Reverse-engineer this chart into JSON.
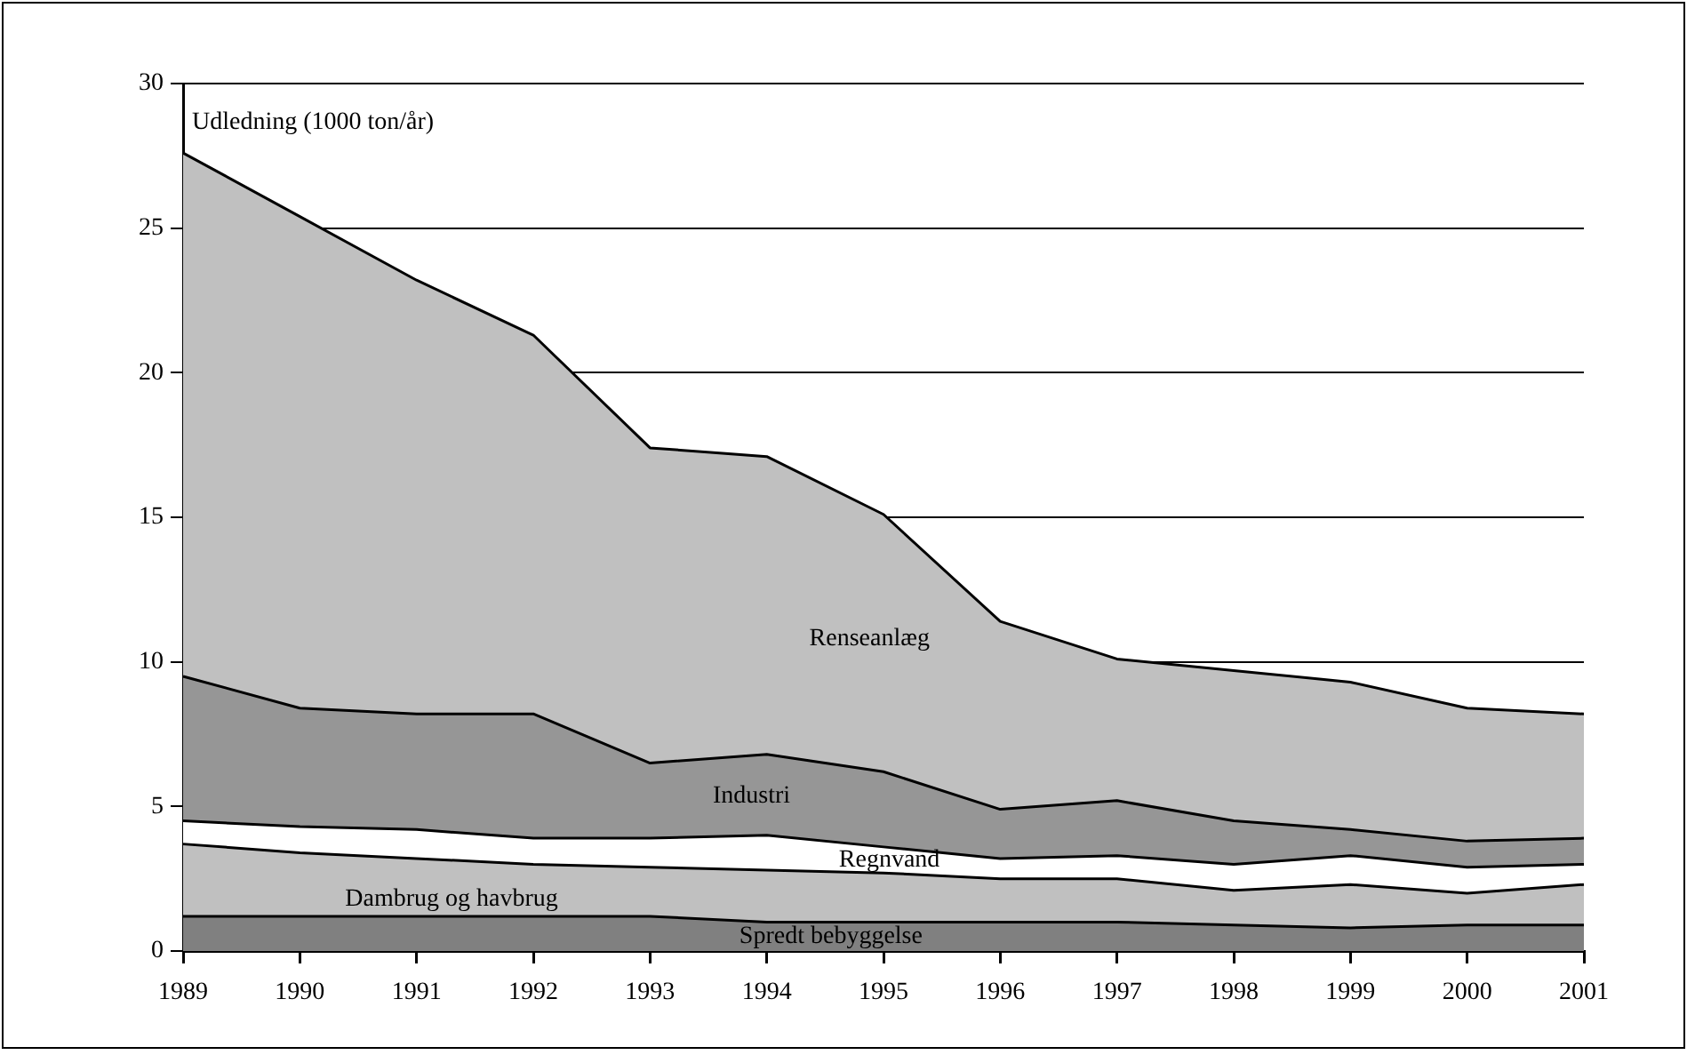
{
  "chart_data": {
    "type": "area",
    "ylabel": "Udledning (1000 ton/år)",
    "categories": [
      "1989",
      "1990",
      "1991",
      "1992",
      "1993",
      "1994",
      "1995",
      "1996",
      "1997",
      "1998",
      "1999",
      "2000",
      "2001"
    ],
    "series": [
      {
        "name": "Spredt bebyggelse",
        "color": "#808080",
        "values": [
          1.2,
          1.2,
          1.2,
          1.2,
          1.2,
          1.0,
          1.0,
          1.0,
          1.0,
          0.9,
          0.8,
          0.9,
          0.9
        ]
      },
      {
        "name": "Dambrug og havbrug",
        "color": "#c0c0c0",
        "values": [
          2.5,
          2.2,
          2.0,
          1.8,
          1.7,
          1.8,
          1.7,
          1.5,
          1.5,
          1.2,
          1.5,
          1.1,
          1.4
        ]
      },
      {
        "name": "Regnvand",
        "color": "#ffffff",
        "values": [
          0.8,
          0.9,
          1.0,
          0.9,
          1.0,
          1.2,
          0.9,
          0.7,
          0.8,
          0.9,
          1.0,
          0.9,
          0.7
        ]
      },
      {
        "name": "Industri",
        "color": "#969696",
        "values": [
          5.0,
          4.1,
          4.0,
          4.3,
          2.6,
          2.8,
          2.6,
          1.7,
          1.9,
          1.5,
          0.9,
          0.9,
          0.9
        ]
      },
      {
        "name": "Renseanlæg",
        "color": "#c0c0c0",
        "values": [
          18.1,
          17.0,
          15.0,
          13.1,
          10.9,
          10.3,
          8.9,
          6.5,
          4.9,
          5.2,
          5.1,
          4.6,
          4.3
        ]
      }
    ],
    "stacked": true,
    "ylim": [
      0,
      30
    ],
    "yticks": [
      0,
      5,
      10,
      15,
      20,
      25,
      30
    ],
    "grid": "y",
    "legend": false
  }
}
